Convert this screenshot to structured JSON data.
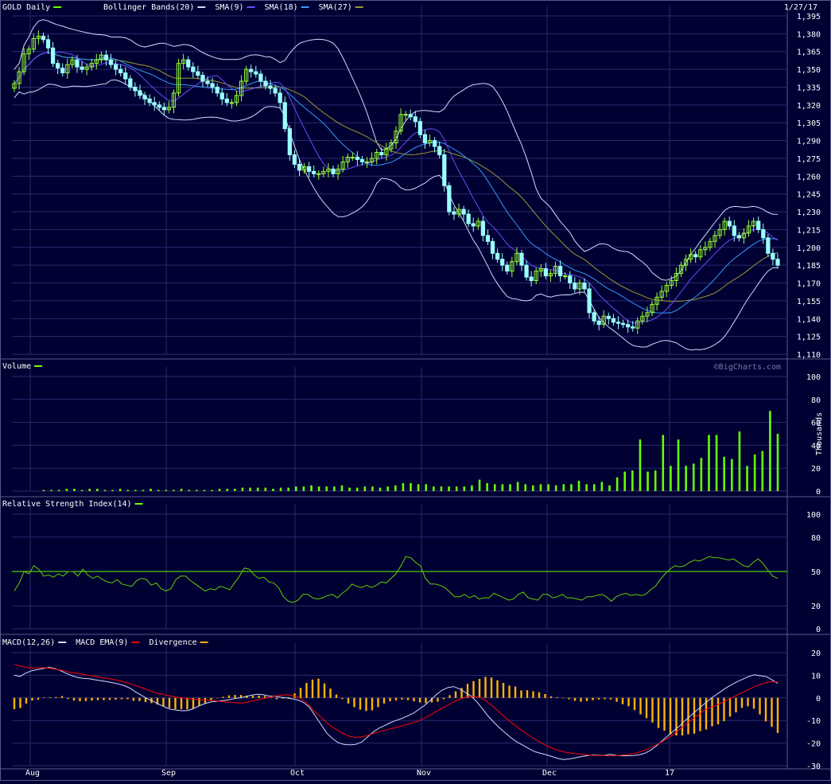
{
  "colors": {
    "background": "#000033",
    "grid": "#2b2b6e",
    "up_candle": "#99ff33",
    "down_candle": "#99ffff",
    "bollinger": "#ccddff",
    "sma9": "#6a4cff",
    "sma18": "#3399ff",
    "sma27": "#999933",
    "volume": "#66ff00",
    "rsi": "#66cc00",
    "rsi_ref": "#66ff00",
    "macd": "#ccddff",
    "macd_ema": "#ff0000",
    "divergence": "#ffb400",
    "legend_swatch_text": "#66ff00"
  },
  "header": {
    "date": "1/27/17",
    "watermark": "©BigCharts.com"
  },
  "chart_data": [
    {
      "type": "candlestick",
      "legend": [
        {
          "label": "GOLD Daily",
          "color": "#66ff00"
        },
        {
          "label": "Bollinger Bands(20)",
          "color": "#ccddff"
        },
        {
          "label": "SMA(9)",
          "color": "#6a4cff"
        },
        {
          "label": "SMA(18)",
          "color": "#3399ff"
        },
        {
          "label": "SMA(27)",
          "color": "#999933"
        }
      ],
      "ylim": [
        1110,
        1395
      ],
      "yticks": [
        1395,
        1380,
        1365,
        1350,
        1335,
        1320,
        1305,
        1290,
        1275,
        1260,
        1245,
        1230,
        1215,
        1200,
        1185,
        1170,
        1155,
        1140,
        1125,
        1110
      ],
      "ytick_labels": [
        "1,395",
        "1,380",
        "1,365",
        "1,350",
        "1,335",
        "1,320",
        "1,305",
        "1,290",
        "1,275",
        "1,260",
        "1,245",
        "1,230",
        "1,215",
        "1,200",
        "1,185",
        "1,170",
        "1,155",
        "1,140",
        "1,125",
        "1,110"
      ],
      "close": [
        1338,
        1348,
        1363,
        1367,
        1376,
        1378,
        1375,
        1368,
        1355,
        1351,
        1347,
        1354,
        1358,
        1352,
        1350,
        1352,
        1355,
        1358,
        1362,
        1358,
        1354,
        1350,
        1347,
        1342,
        1335,
        1332,
        1328,
        1325,
        1322,
        1320,
        1318,
        1316,
        1318,
        1330,
        1355,
        1358,
        1352,
        1348,
        1345,
        1340,
        1338,
        1335,
        1330,
        1325,
        1322,
        1322,
        1328,
        1340,
        1350,
        1348,
        1346,
        1340,
        1336,
        1334,
        1330,
        1322,
        1300,
        1278,
        1270,
        1265,
        1268,
        1264,
        1262,
        1262,
        1264,
        1266,
        1262,
        1266,
        1272,
        1276,
        1276,
        1274,
        1272,
        1272,
        1275,
        1280,
        1278,
        1283,
        1288,
        1298,
        1312,
        1312,
        1310,
        1306,
        1295,
        1288,
        1290,
        1285,
        1278,
        1252,
        1230,
        1228,
        1232,
        1228,
        1220,
        1218,
        1222,
        1210,
        1205,
        1195,
        1190,
        1185,
        1180,
        1188,
        1195,
        1185,
        1175,
        1172,
        1180,
        1182,
        1176,
        1178,
        1184,
        1176,
        1176,
        1170,
        1165,
        1170,
        1165,
        1145,
        1138,
        1135,
        1142,
        1140,
        1137,
        1136,
        1135,
        1133,
        1132,
        1138,
        1142,
        1145,
        1152,
        1158,
        1163,
        1168,
        1172,
        1178,
        1185,
        1190,
        1194,
        1192,
        1198,
        1200,
        1205,
        1210,
        1215,
        1222,
        1218,
        1210,
        1208,
        1212,
        1218,
        1222,
        1215,
        1208,
        1195,
        1190,
        1185
      ],
      "x_ticks": [
        {
          "label": "Aug",
          "x": 0.5
        },
        {
          "label": "Sep",
          "x": 20.0
        },
        {
          "label": "Oct",
          "x": 41.0
        },
        {
          "label": "Nov",
          "x": 63.0
        },
        {
          "label": "Dec",
          "x": 85.0
        },
        {
          "label": "17",
          "x": 106.0
        }
      ]
    },
    {
      "type": "bar",
      "name": "Volume",
      "legend": [
        {
          "label": "Volume",
          "color": "#66ff00"
        }
      ],
      "ylabel": "Thousands",
      "ylim": [
        0,
        100
      ],
      "yticks": [
        100,
        80,
        60,
        40,
        20,
        0
      ],
      "values": [
        1,
        1,
        1,
        2,
        2,
        1,
        2,
        2,
        1,
        1,
        2,
        1,
        1,
        1,
        2,
        1,
        1,
        1,
        2,
        1,
        1,
        1,
        1,
        2,
        2,
        2,
        3,
        3,
        3,
        3,
        2,
        3,
        3,
        4,
        4,
        5,
        4,
        4,
        4,
        5,
        3,
        3,
        4,
        4,
        3,
        4,
        5,
        7,
        7,
        6,
        6,
        4,
        4,
        4,
        4,
        4,
        5,
        10,
        7,
        6,
        6,
        6,
        8,
        6,
        5,
        6,
        6,
        5,
        6,
        6,
        9,
        6,
        6,
        8,
        5,
        12,
        17,
        18,
        45,
        17,
        18,
        49,
        22,
        45,
        22,
        24,
        29,
        49,
        49,
        30,
        28,
        52,
        22,
        32,
        35,
        70,
        50
      ]
    },
    {
      "type": "line",
      "name": "Relative Strength Index(14)",
      "legend": [
        {
          "label": "Relative Strength Index(14)",
          "color": "#66ff00"
        }
      ],
      "ylim": [
        0,
        100
      ],
      "yticks": [
        100,
        80,
        50,
        20,
        0
      ],
      "ref_line": 50,
      "values": [
        33,
        40,
        50,
        48,
        55,
        52,
        46,
        47,
        45,
        48,
        46,
        50,
        50,
        46,
        52,
        47,
        44,
        46,
        43,
        41,
        40,
        43,
        39,
        38,
        37,
        42,
        44,
        43,
        38,
        40,
        35,
        33,
        35,
        43,
        46,
        46,
        42,
        39,
        36,
        33,
        35,
        34,
        37,
        36,
        34,
        40,
        46,
        53,
        52,
        47,
        44,
        45,
        41,
        40,
        36,
        28,
        24,
        23,
        25,
        30,
        30,
        27,
        26,
        27,
        29,
        30,
        27,
        31,
        34,
        39,
        37,
        36,
        38,
        36,
        38,
        41,
        40,
        44,
        48,
        55,
        63,
        62,
        58,
        55,
        44,
        39,
        39,
        38,
        36,
        32,
        28,
        28,
        30,
        27,
        29,
        26,
        27,
        27,
        31,
        29,
        27,
        25,
        26,
        30,
        32,
        27,
        26,
        25,
        30,
        30,
        27,
        28,
        30,
        27,
        27,
        26,
        25,
        28,
        28,
        29,
        30,
        28,
        24,
        28,
        30,
        31,
        29,
        30,
        29,
        30,
        34,
        37,
        43,
        48,
        52,
        55,
        54,
        55,
        58,
        60,
        59,
        61,
        63,
        62,
        62,
        61,
        60,
        61,
        58,
        55,
        54,
        58,
        61,
        57,
        51,
        46,
        44
      ]
    },
    {
      "type": "line",
      "name": "MACD(12,26)",
      "legend": [
        {
          "label": "MACD(12,26)",
          "color": "#ccddff"
        },
        {
          "label": "MACD EMA(9)",
          "color": "#ff0000"
        },
        {
          "label": "Divergence",
          "color": "#ffb400"
        }
      ],
      "ylim": [
        -30,
        20
      ],
      "yticks": [
        20,
        10,
        0,
        -10,
        -20,
        -30
      ],
      "macd": [
        10,
        9.5,
        11,
        12,
        12.5,
        13,
        13.5,
        13,
        12,
        10.8,
        9.8,
        9,
        8.6,
        8.5,
        8,
        7.6,
        7.2,
        6.7,
        6.2,
        5.4,
        4.3,
        2.6,
        1.1,
        -0.3,
        -1.5,
        -2.8,
        -4,
        -5,
        -5.4,
        -5.7,
        -5.6,
        -4.7,
        -3.5,
        -2.5,
        -1.8,
        -1.5,
        -1.2,
        -0.9,
        -0.3,
        0,
        0.6,
        1.2,
        1.6,
        1.4,
        0.8,
        0.7,
        0.3,
        0,
        -0.4,
        -0.9,
        -2,
        -4,
        -7.8,
        -11.7,
        -15.5,
        -18,
        -19.8,
        -20.6,
        -20.8,
        -20.6,
        -19.6,
        -17.5,
        -15.2,
        -13.5,
        -12.3,
        -11,
        -10,
        -9.1,
        -8,
        -6.8,
        -5,
        -3.2,
        -1,
        1.5,
        3.5,
        4.6,
        5,
        3.9,
        2.4,
        0.8,
        -1.8,
        -5,
        -8.3,
        -11,
        -13.5,
        -15.7,
        -17.9,
        -19.7,
        -21,
        -22.5,
        -23.8,
        -24.5,
        -25.2,
        -26,
        -26.8,
        -27.3,
        -27,
        -26.5,
        -26,
        -25.6,
        -25.2,
        -25.4,
        -25.5,
        -25,
        -25.4,
        -25.6,
        -25.6,
        -25.5,
        -25.2,
        -24.5,
        -23.2,
        -21.3,
        -19,
        -16.8,
        -14.6,
        -12.5,
        -10,
        -7.8,
        -5.5,
        -3.3,
        -1.2,
        0.8,
        2.5,
        4.3,
        5.8,
        7.2,
        8.3,
        9.5,
        10.2,
        9.8,
        9.4,
        8,
        6.4
      ],
      "macd_ema": [
        15,
        14,
        13.5,
        13.2,
        13.3,
        13.3,
        13,
        12.5,
        12,
        11.3,
        11,
        10.5,
        10,
        9.5,
        9,
        8.6,
        8.1,
        7.5,
        6.8,
        6,
        5,
        4,
        3,
        2,
        1.5,
        0.9,
        0.4,
        0,
        -0.4,
        -0.6,
        -0.8,
        -1.1,
        -1.1,
        -1.5,
        -1.8,
        -2,
        -2.3,
        -2.2,
        -1.6,
        -1,
        -0.4,
        0.2,
        0.8,
        1.2,
        1.4,
        1,
        0,
        -2,
        -4.8,
        -7.5,
        -10.1,
        -12.5,
        -14.2,
        -15.8,
        -17,
        -17.5,
        -17.3,
        -16.5,
        -15.6,
        -14.8,
        -14.1,
        -13.4,
        -12.7,
        -12,
        -11.2,
        -10.3,
        -9,
        -7.6,
        -6,
        -4.4,
        -3,
        -1.5,
        -0.4,
        0.3,
        0.6,
        0.2,
        -1.2,
        -3.5,
        -6,
        -8.5,
        -10.7,
        -12.8,
        -14.9,
        -16.8,
        -18.5,
        -20,
        -21.5,
        -22.6,
        -23.5,
        -24.2,
        -24.5,
        -24.8,
        -25.2,
        -25.4,
        -25.5,
        -25.6,
        -25.6,
        -25.5,
        -25.3,
        -25,
        -24.5,
        -23.7,
        -22.7,
        -21.3,
        -20,
        -18.3,
        -16.5,
        -14.4,
        -12.2,
        -10,
        -8,
        -5.8,
        -4.4,
        -3.5,
        -2,
        -0.8,
        0.6,
        2,
        3.3,
        4.6,
        5.8,
        6.6,
        7.2,
        7
      ],
      "divergence": [
        -5,
        -4.5,
        -2.5,
        -1.2,
        -0.8,
        0.2,
        0.3,
        0.4,
        0.8,
        -0.5,
        -1.2,
        -1.5,
        -1.4,
        -1.2,
        -1,
        -1,
        -0.9,
        -0.8,
        -0.6,
        -0.6,
        -1.3,
        -1.4,
        -1.9,
        -2.3,
        -3,
        -3.7,
        -4.4,
        -5,
        -5,
        -5.1,
        -4.8,
        -3.6,
        -2.4,
        -1,
        0,
        0.5,
        1.1,
        1.3,
        1.3,
        1,
        1,
        1,
        0.8,
        0.2,
        -0.6,
        -0.3,
        0.3,
        2,
        4.4,
        6.6,
        8.1,
        8.5,
        6.4,
        4.1,
        1.5,
        -0.5,
        -2.5,
        -4.1,
        -5.2,
        -5.8,
        -5.5,
        -4.1,
        -2.5,
        -1.5,
        -1.1,
        -0.7,
        -1,
        -1.5,
        -2,
        -2.4,
        -2,
        -1.7,
        -0.6,
        1.2,
        2.9,
        4.4,
        6.2,
        7.4,
        8.4,
        9.3,
        9,
        7.8,
        6.6,
        5.4,
        5,
        3.3,
        3.4,
        2.9,
        2.5,
        1.7,
        0.7,
        0.3,
        0,
        -0.6,
        -1.3,
        -1.7,
        -1.4,
        -1,
        -0.7,
        -0.6,
        -0.7,
        -1.7,
        -2.8,
        -3.7,
        -5.4,
        -7.3,
        -9,
        -10.9,
        -13.3,
        -14.5,
        -16.2,
        -16.6,
        -16.6,
        -16.1,
        -15.8,
        -14.7,
        -14,
        -12.6,
        -11.7,
        -10.3,
        -8.3,
        -6.4,
        -4.4,
        -3.7,
        -4.8,
        -7.3,
        -10.4,
        -12.8,
        -15.5
      ]
    }
  ]
}
